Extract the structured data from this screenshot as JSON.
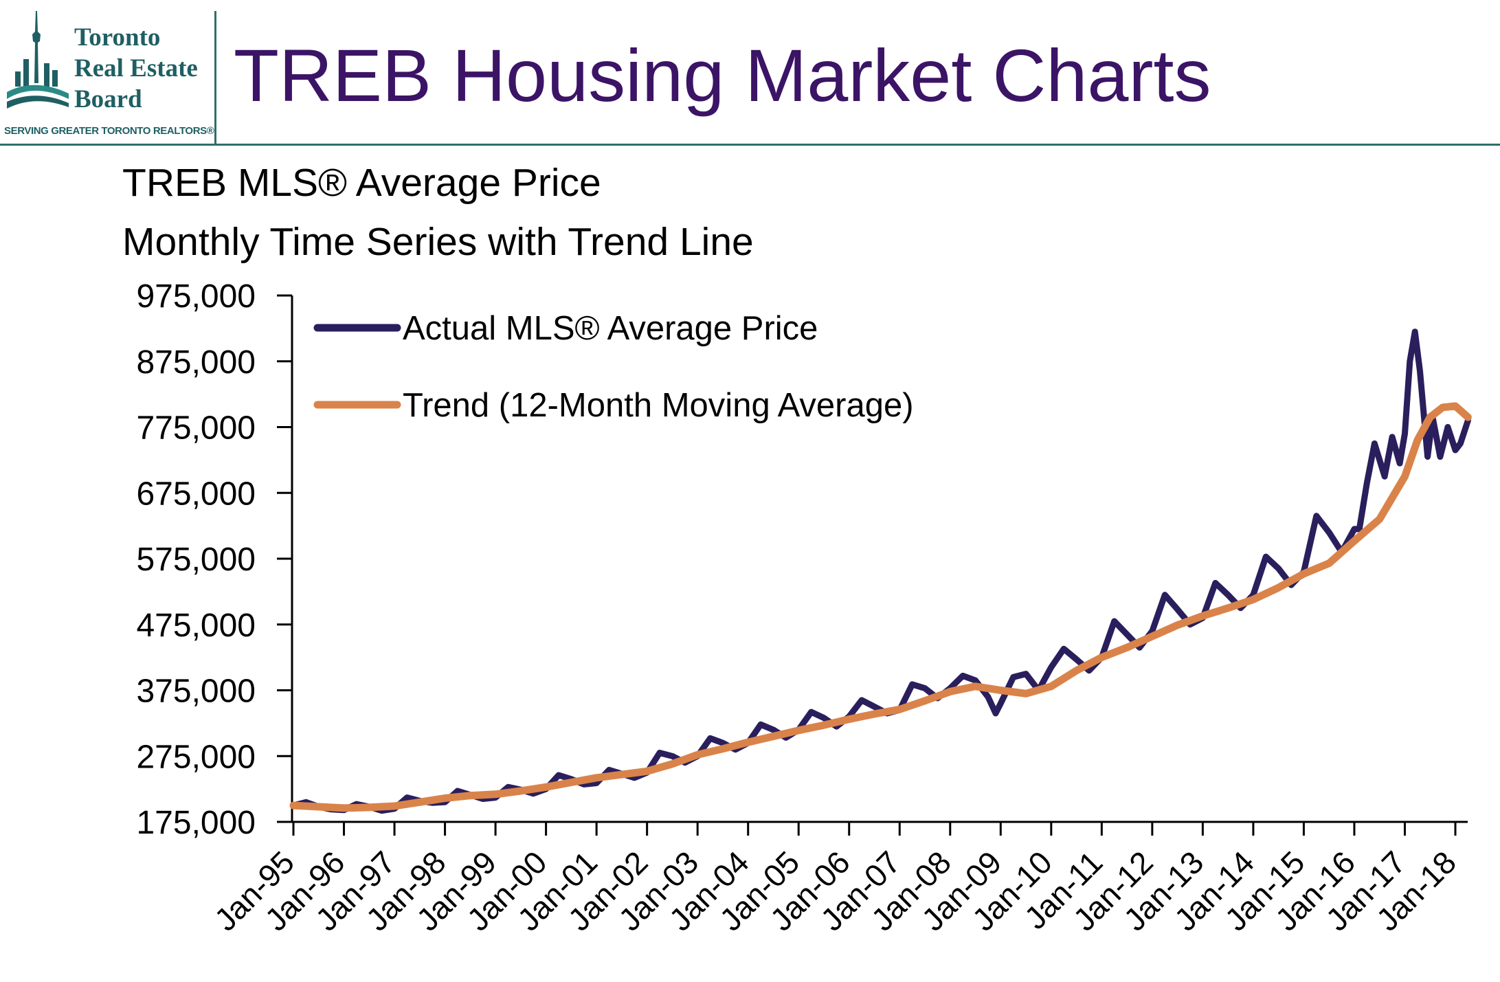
{
  "header": {
    "logo": {
      "line1": "Toronto",
      "line2": "Real Estate",
      "line3": "Board",
      "tagline": "SERVING GREATER TORONTO REALTORS®"
    },
    "title": "TREB Housing Market Charts"
  },
  "colors": {
    "title": "#3b1466",
    "actual_series": "#2a1f5c",
    "trend_series": "#d9834a",
    "rule": "#2e6f6c"
  },
  "chart_data": {
    "type": "line",
    "title": "TREB MLS® Average Price",
    "subtitle": "Monthly Time Series with Trend Line",
    "xlabel": "",
    "ylabel": "",
    "ylim": [
      175000,
      975000
    ],
    "xlim": [
      1995.0,
      2018.25
    ],
    "y_ticks": [
      175000,
      275000,
      375000,
      475000,
      575000,
      675000,
      775000,
      875000,
      975000
    ],
    "y_tick_labels": [
      "175,000",
      "275,000",
      "375,000",
      "475,000",
      "575,000",
      "675,000",
      "775,000",
      "875,000",
      "975,000"
    ],
    "x_ticks": [
      1995,
      1996,
      1997,
      1998,
      1999,
      2000,
      2001,
      2002,
      2003,
      2004,
      2005,
      2006,
      2007,
      2008,
      2009,
      2010,
      2011,
      2012,
      2013,
      2014,
      2015,
      2016,
      2017,
      2018
    ],
    "x_tick_labels": [
      "Jan-95",
      "Jan-96",
      "Jan-97",
      "Jan-98",
      "Jan-99",
      "Jan-00",
      "Jan-01",
      "Jan-02",
      "Jan-03",
      "Jan-04",
      "Jan-05",
      "Jan-06",
      "Jan-07",
      "Jan-08",
      "Jan-09",
      "Jan-10",
      "Jan-11",
      "Jan-12",
      "Jan-13",
      "Jan-14",
      "Jan-15",
      "Jan-16",
      "Jan-17",
      "Jan-18"
    ],
    "legend": {
      "position": "top-left",
      "entries": [
        "Actual MLS® Average Price",
        "Trend (12-Month Moving Average)"
      ]
    },
    "grid": false,
    "series": [
      {
        "name": "Actual MLS® Average Price",
        "x": [
          1995.0,
          1995.25,
          1995.5,
          1995.75,
          1996.0,
          1996.25,
          1996.5,
          1996.75,
          1997.0,
          1997.25,
          1997.5,
          1997.75,
          1998.0,
          1998.25,
          1998.5,
          1998.75,
          1999.0,
          1999.25,
          1999.5,
          1999.75,
          2000.0,
          2000.25,
          2000.5,
          2000.75,
          2001.0,
          2001.25,
          2001.5,
          2001.75,
          2002.0,
          2002.25,
          2002.5,
          2002.75,
          2003.0,
          2003.25,
          2003.5,
          2003.75,
          2004.0,
          2004.25,
          2004.5,
          2004.75,
          2005.0,
          2005.25,
          2005.5,
          2005.75,
          2006.0,
          2006.25,
          2006.5,
          2006.75,
          2007.0,
          2007.25,
          2007.5,
          2007.75,
          2008.0,
          2008.25,
          2008.5,
          2008.75,
          2008.9,
          2009.0,
          2009.25,
          2009.5,
          2009.75,
          2010.0,
          2010.25,
          2010.5,
          2010.75,
          2011.0,
          2011.25,
          2011.5,
          2011.75,
          2012.0,
          2012.25,
          2012.5,
          2012.75,
          2013.0,
          2013.25,
          2013.5,
          2013.75,
          2014.0,
          2014.25,
          2014.5,
          2014.75,
          2015.0,
          2015.25,
          2015.5,
          2015.75,
          2016.0,
          2016.1,
          2016.25,
          2016.4,
          2016.6,
          2016.75,
          2016.9,
          2017.0,
          2017.1,
          2017.2,
          2017.3,
          2017.45,
          2017.55,
          2017.7,
          2017.85,
          2018.0,
          2018.1,
          2018.25
        ],
        "values": [
          200000,
          205000,
          198000,
          194000,
          193000,
          202000,
          198000,
          192000,
          195000,
          212000,
          207000,
          204000,
          205000,
          222000,
          216000,
          210000,
          212000,
          228000,
          224000,
          218000,
          225000,
          246000,
          240000,
          232000,
          234000,
          254000,
          248000,
          242000,
          250000,
          280000,
          275000,
          265000,
          275000,
          302000,
          295000,
          285000,
          295000,
          323000,
          315000,
          303000,
          315000,
          342000,
          333000,
          320000,
          335000,
          360000,
          350000,
          340000,
          345000,
          384000,
          378000,
          363000,
          378000,
          397000,
          390000,
          365000,
          340000,
          355000,
          395000,
          400000,
          375000,
          410000,
          438000,
          422000,
          405000,
          425000,
          480000,
          460000,
          440000,
          465000,
          520000,
          498000,
          475000,
          485000,
          538000,
          520000,
          500000,
          520000,
          578000,
          560000,
          535000,
          555000,
          640000,
          615000,
          585000,
          620000,
          620000,
          690000,
          750000,
          700000,
          760000,
          720000,
          765000,
          875000,
          920000,
          860000,
          730000,
          790000,
          730000,
          775000,
          740000,
          750000,
          785000
        ]
      },
      {
        "name": "Trend (12-Month Moving Average)",
        "x": [
          1995.0,
          1995.5,
          1996.0,
          1996.5,
          1997.0,
          1997.5,
          1998.0,
          1998.5,
          1999.0,
          1999.5,
          2000.0,
          2000.5,
          2001.0,
          2001.5,
          2002.0,
          2002.5,
          2003.0,
          2003.5,
          2004.0,
          2004.5,
          2005.0,
          2005.5,
          2006.0,
          2006.5,
          2007.0,
          2007.5,
          2008.0,
          2008.5,
          2009.0,
          2009.5,
          2010.0,
          2010.5,
          2011.0,
          2011.5,
          2012.0,
          2012.5,
          2013.0,
          2013.5,
          2014.0,
          2014.5,
          2015.0,
          2015.5,
          2016.0,
          2016.5,
          2017.0,
          2017.25,
          2017.5,
          2017.75,
          2018.0,
          2018.25
        ],
        "values": [
          200000,
          198000,
          196000,
          197000,
          199000,
          205000,
          211000,
          215000,
          217000,
          222000,
          228000,
          235000,
          242000,
          247000,
          252000,
          263000,
          277000,
          286000,
          296000,
          305000,
          314000,
          322000,
          331000,
          339000,
          346000,
          359000,
          373000,
          381000,
          375000,
          370000,
          381000,
          405000,
          425000,
          440000,
          457000,
          474000,
          488000,
          500000,
          513000,
          531000,
          552000,
          568000,
          602000,
          635000,
          700000,
          755000,
          790000,
          805000,
          807000,
          790000
        ]
      }
    ]
  }
}
